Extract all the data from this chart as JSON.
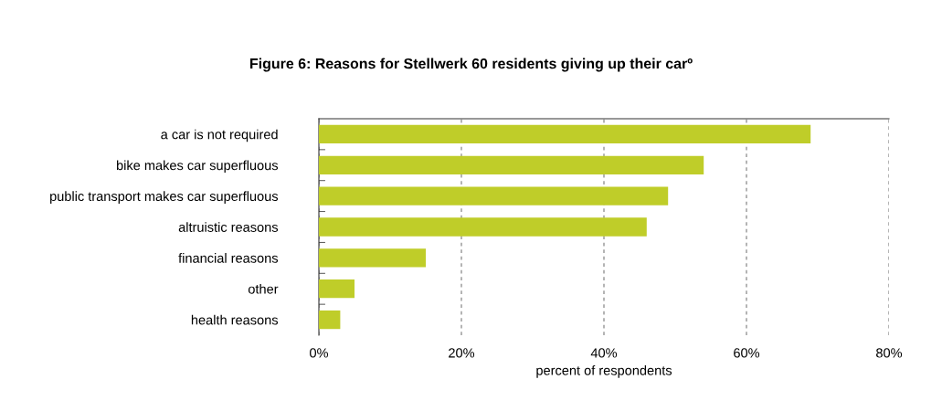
{
  "chart_data": {
    "type": "bar",
    "orientation": "horizontal",
    "title": "Figure 6: Reasons for Stellwerk 60 residents giving up their carº",
    "xlabel": "percent of respondents",
    "categories": [
      "a car is not required",
      "bike makes car superfluous",
      "public transport makes car superfluous",
      "altruistic reasons",
      "financial reasons",
      "other",
      "health reasons"
    ],
    "values": [
      69,
      54,
      49,
      46,
      15,
      5,
      3
    ],
    "color": "#bfcd29",
    "xlim": [
      0,
      80
    ],
    "xticks": [
      {
        "value": 0,
        "label": "0%"
      },
      {
        "value": 20,
        "label": "20%"
      },
      {
        "value": 40,
        "label": "40%"
      },
      {
        "value": 60,
        "label": "60%"
      },
      {
        "value": 80,
        "label": "80%"
      }
    ],
    "grid": "x",
    "legend": false
  }
}
